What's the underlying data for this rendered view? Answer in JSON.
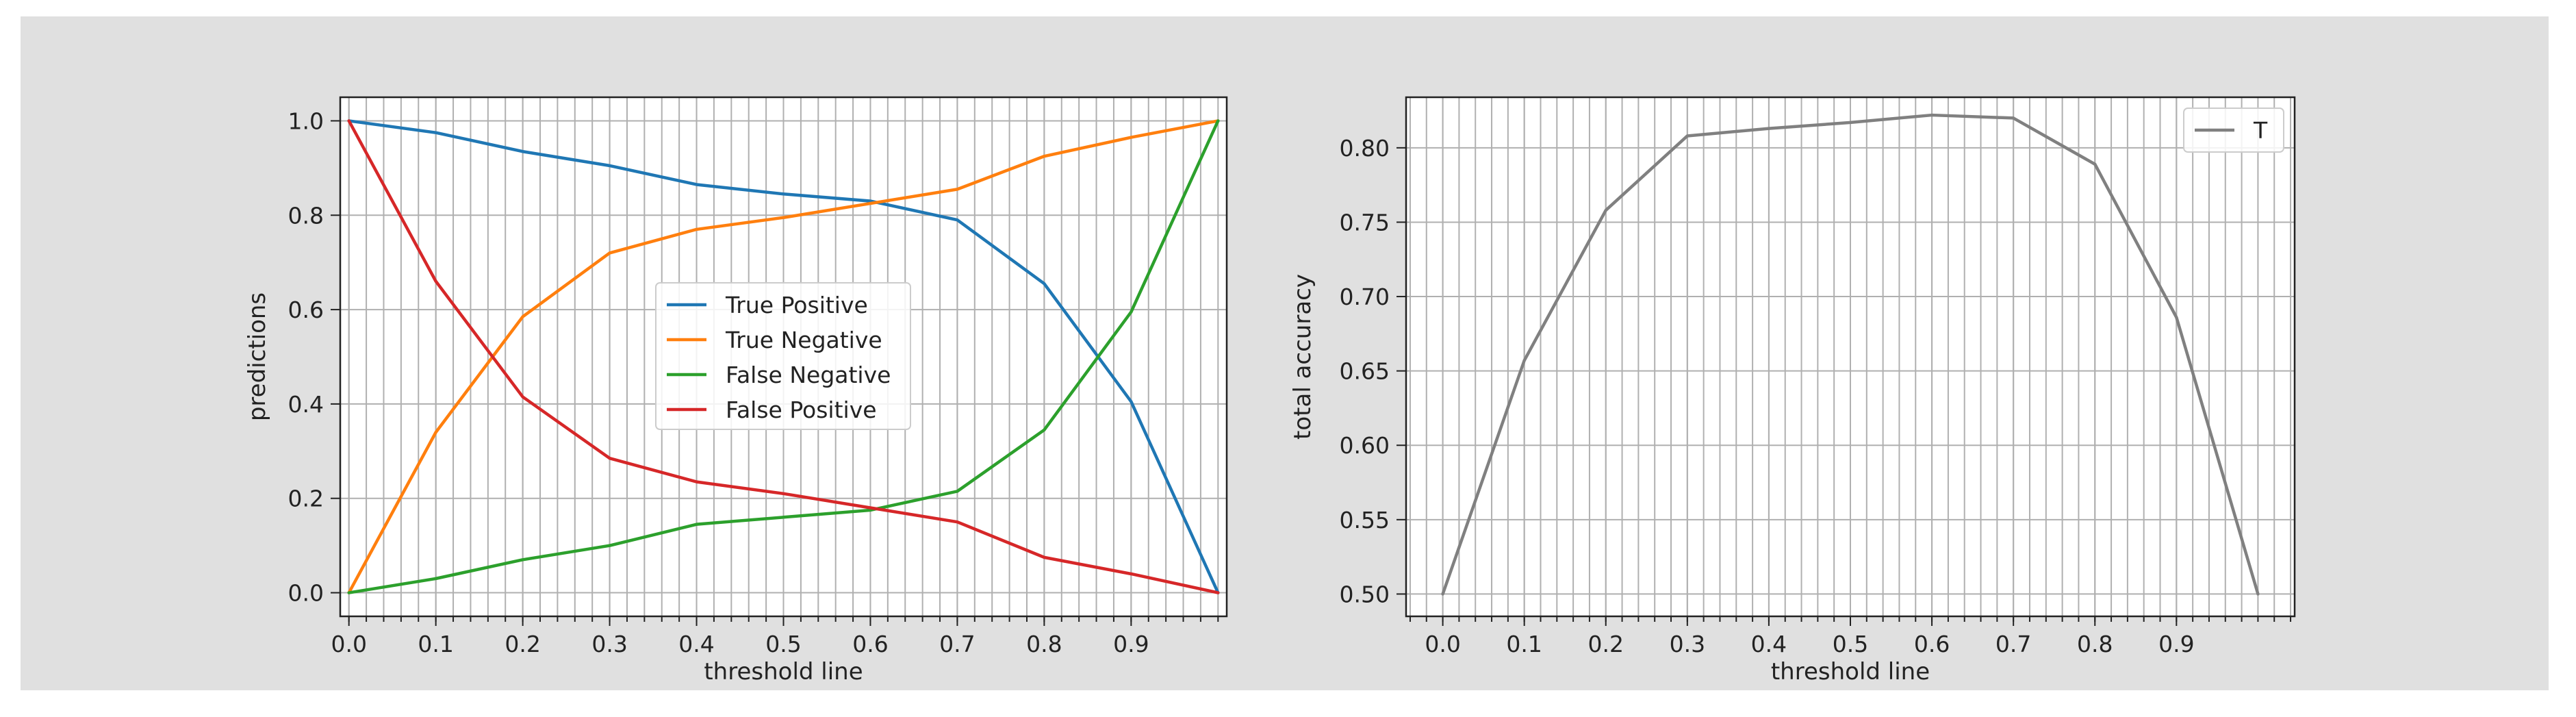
{
  "colors": {
    "figure_bg": "#e0e0e0",
    "axes_bg": "#ffffff",
    "grid": "#b0b0b0",
    "text": "#222222"
  },
  "chart_data": [
    {
      "type": "line",
      "title": "",
      "xlabel": "threshold line",
      "ylabel": "predictions",
      "xlim": [
        -0.01,
        1.01
      ],
      "ylim": [
        -0.05,
        1.05
      ],
      "x": [
        0.0,
        0.1,
        0.2,
        0.3,
        0.4,
        0.5,
        0.6,
        0.7,
        0.8,
        0.9,
        1.0
      ],
      "x_ticks": [
        "0.0",
        "0.1",
        "0.2",
        "0.3",
        "0.4",
        "0.5",
        "0.6",
        "0.7",
        "0.8",
        "0.9"
      ],
      "y_ticks": [
        "0.0",
        "0.2",
        "0.4",
        "0.6",
        "0.8",
        "1.0"
      ],
      "grid": true,
      "minor_x_step": 0.02,
      "legend_position": "center",
      "series": [
        {
          "name": "True Positive",
          "color": "#1f77b4",
          "values": [
            1.0,
            0.975,
            0.935,
            0.905,
            0.865,
            0.845,
            0.83,
            0.79,
            0.655,
            0.405,
            0.0
          ]
        },
        {
          "name": "True Negative",
          "color": "#ff7f0e",
          "values": [
            0.0,
            0.34,
            0.585,
            0.72,
            0.77,
            0.795,
            0.825,
            0.855,
            0.925,
            0.965,
            1.0
          ]
        },
        {
          "name": "False Negative",
          "color": "#2ca02c",
          "values": [
            0.0,
            0.03,
            0.07,
            0.1,
            0.145,
            0.16,
            0.175,
            0.215,
            0.345,
            0.595,
            1.0
          ]
        },
        {
          "name": "False Positive",
          "color": "#d62728",
          "values": [
            1.0,
            0.66,
            0.415,
            0.285,
            0.235,
            0.21,
            0.18,
            0.15,
            0.075,
            0.04,
            0.0
          ]
        }
      ]
    },
    {
      "type": "line",
      "title": "",
      "xlabel": "threshold line",
      "ylabel": "total accuracy",
      "xlim": [
        -0.045,
        1.045
      ],
      "ylim": [
        0.485,
        0.834
      ],
      "x": [
        0.0,
        0.1,
        0.2,
        0.3,
        0.4,
        0.5,
        0.6,
        0.7,
        0.8,
        0.9,
        1.0
      ],
      "x_ticks": [
        "0.0",
        "0.1",
        "0.2",
        "0.3",
        "0.4",
        "0.5",
        "0.6",
        "0.7",
        "0.8",
        "0.9"
      ],
      "y_ticks": [
        "0.50",
        "0.55",
        "0.60",
        "0.65",
        "0.70",
        "0.75",
        "0.80"
      ],
      "grid": true,
      "minor_x_step": 0.02,
      "legend_position": "top-right",
      "series": [
        {
          "name": "T",
          "color": "#808080",
          "values": [
            0.5,
            0.657,
            0.758,
            0.808,
            0.813,
            0.817,
            0.822,
            0.82,
            0.789,
            0.686,
            0.5
          ]
        }
      ]
    }
  ]
}
